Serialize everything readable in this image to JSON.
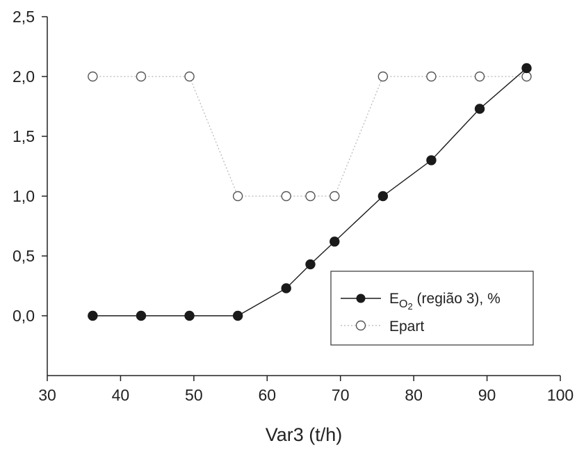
{
  "chart_data": {
    "type": "line",
    "xlabel": "Var3 (t/h)",
    "ylabel": "",
    "xlim": [
      30,
      100
    ],
    "ylim": [
      -0.5,
      2.5
    ],
    "x_ticks": [
      "30",
      "40",
      "50",
      "60",
      "70",
      "80",
      "90",
      "100"
    ],
    "y_ticks": [
      "0,0",
      "0,5",
      "1,0",
      "1,5",
      "2,0",
      "2,5"
    ],
    "grid": false,
    "legend_position": "bottom-right",
    "series": [
      {
        "name": "EO2 (região 3), %",
        "legend_main": "E",
        "legend_sub": "O",
        "legend_sub2": "2",
        "legend_rest": " (região 3), %",
        "marker": "filled-circle",
        "line": "solid",
        "x": [
          36.2,
          42.8,
          49.4,
          56.0,
          62.6,
          65.9,
          69.2,
          75.8,
          82.4,
          89.0,
          95.4
        ],
        "y": [
          0.0,
          0.0,
          0.0,
          0.0,
          0.23,
          0.43,
          0.62,
          1.0,
          1.3,
          1.73,
          2.07
        ]
      },
      {
        "name": "Epart",
        "marker": "open-circle",
        "line": "dotted",
        "x": [
          36.2,
          42.8,
          49.4,
          56.0,
          62.6,
          65.9,
          69.2,
          75.8,
          82.4,
          89.0,
          95.4
        ],
        "y": [
          2.0,
          2.0,
          2.0,
          1.0,
          1.0,
          1.0,
          1.0,
          2.0,
          2.0,
          2.0,
          2.0
        ]
      }
    ],
    "colors": {
      "axis": "#222222",
      "series1": "#1a1a1a",
      "series2_line": "#b5b5b5",
      "series2_marker": "#555555"
    }
  }
}
